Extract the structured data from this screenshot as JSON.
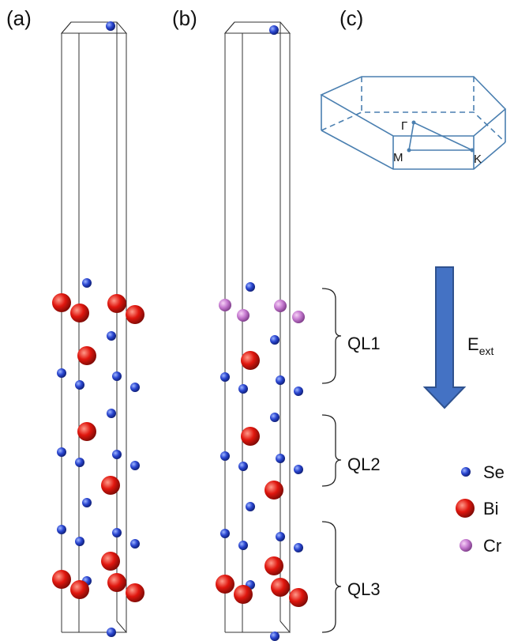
{
  "panels": {
    "a": "(a)",
    "b": "(b)",
    "c": "(c)"
  },
  "brillouin_zone": {
    "gamma": "Γ",
    "m": "M",
    "k": "K"
  },
  "layers": [
    "QL1",
    "QL2",
    "QL3"
  ],
  "field": {
    "symbol": "E",
    "subscript": "ext"
  },
  "legend": [
    "Se",
    "Bi",
    "Cr"
  ]
}
